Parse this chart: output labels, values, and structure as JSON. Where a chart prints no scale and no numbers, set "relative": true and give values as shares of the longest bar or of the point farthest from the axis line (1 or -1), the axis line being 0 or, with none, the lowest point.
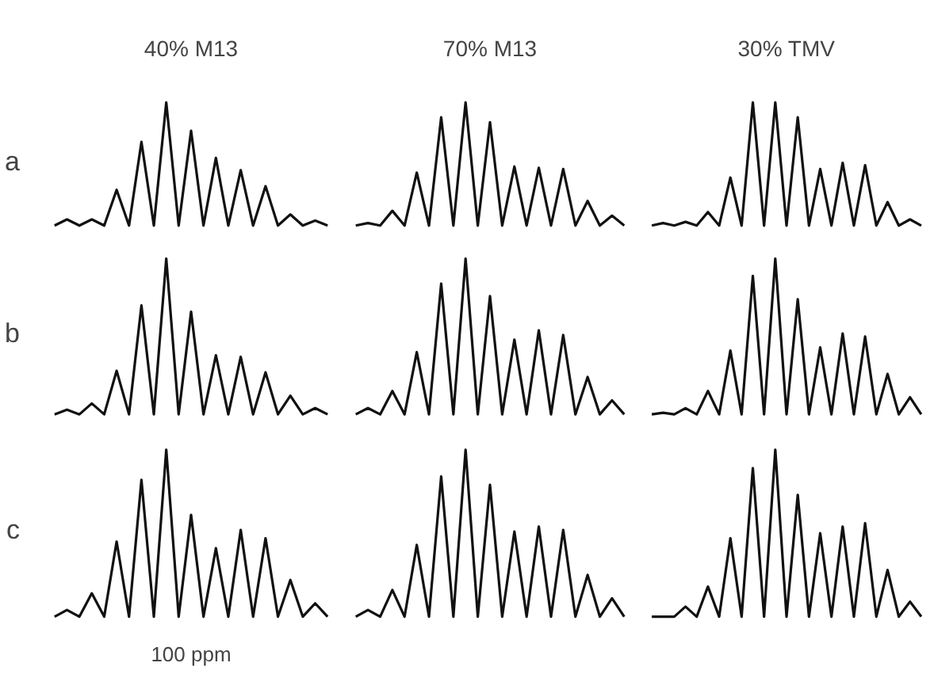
{
  "chart_data": [
    {
      "type": "line",
      "relative": true,
      "title": "40% M13",
      "ylabel": "a",
      "color": "#111111",
      "categories": [
        null,
        null,
        null,
        null,
        null,
        null,
        null,
        null,
        null,
        null,
        null,
        null,
        null,
        null,
        null,
        null,
        null,
        null,
        null,
        null,
        null,
        null,
        null
      ],
      "values": [
        0,
        0.05,
        0,
        0.05,
        0,
        0.29,
        0,
        0.68,
        0,
        1,
        0,
        0.77,
        0,
        0.55,
        0,
        0.45,
        0,
        0.32,
        0,
        0.09,
        0,
        0.04,
        0
      ]
    },
    {
      "type": "line",
      "relative": true,
      "title": "70% M13",
      "color": "#111111",
      "categories": [
        null,
        null,
        null,
        null,
        null,
        null,
        null,
        null,
        null,
        null,
        null,
        null,
        null,
        null,
        null,
        null,
        null,
        null,
        null,
        null,
        null,
        null,
        null
      ],
      "values": [
        0,
        0.02,
        0,
        0.12,
        0,
        0.43,
        0,
        0.88,
        0,
        1,
        0,
        0.84,
        0,
        0.48,
        0,
        0.47,
        0,
        0.46,
        0,
        0.2,
        0,
        0.08,
        0
      ]
    },
    {
      "type": "line",
      "relative": true,
      "title": "30% TMV",
      "color": "#111111",
      "categories": [
        null,
        null,
        null,
        null,
        null,
        null,
        null,
        null,
        null,
        null,
        null,
        null,
        null,
        null,
        null,
        null,
        null,
        null,
        null,
        null,
        null,
        null,
        null,
        null,
        null
      ],
      "values": [
        0,
        0.02,
        0,
        0.03,
        0,
        0.11,
        0,
        0.39,
        0,
        1,
        0,
        1,
        0,
        0.88,
        0,
        0.46,
        0,
        0.51,
        0,
        0.49,
        0,
        0.19,
        0,
        0.05,
        0
      ]
    },
    {
      "type": "line",
      "relative": true,
      "ylabel": "b",
      "color": "#111111",
      "categories": [
        null,
        null,
        null,
        null,
        null,
        null,
        null,
        null,
        null,
        null,
        null,
        null,
        null,
        null,
        null,
        null,
        null,
        null,
        null,
        null,
        null,
        null,
        null
      ],
      "values": [
        0,
        0.03,
        0,
        0.07,
        0,
        0.28,
        0,
        0.7,
        0,
        1,
        0,
        0.66,
        0,
        0.38,
        0,
        0.37,
        0,
        0.27,
        0,
        0.12,
        0,
        0.04,
        0
      ]
    },
    {
      "type": "line",
      "relative": true,
      "color": "#111111",
      "categories": [
        null,
        null,
        null,
        null,
        null,
        null,
        null,
        null,
        null,
        null,
        null,
        null,
        null,
        null,
        null,
        null,
        null,
        null,
        null,
        null,
        null,
        null,
        null
      ],
      "values": [
        0,
        0.04,
        0,
        0.15,
        0,
        0.4,
        0,
        0.84,
        0,
        1,
        0,
        0.76,
        0,
        0.48,
        0,
        0.54,
        0,
        0.51,
        0,
        0.24,
        0,
        0.09,
        0
      ]
    },
    {
      "type": "line",
      "relative": true,
      "color": "#111111",
      "categories": [
        null,
        null,
        null,
        null,
        null,
        null,
        null,
        null,
        null,
        null,
        null,
        null,
        null,
        null,
        null,
        null,
        null,
        null,
        null,
        null,
        null,
        null,
        null,
        null,
        null
      ],
      "values": [
        0,
        0.01,
        0,
        0.04,
        0,
        0.15,
        0,
        0.41,
        0,
        0.89,
        0,
        1,
        0,
        0.74,
        0,
        0.43,
        0,
        0.52,
        0,
        0.5,
        0,
        0.26,
        0,
        0.11,
        0
      ]
    },
    {
      "type": "line",
      "relative": true,
      "ylabel": "c",
      "color": "#111111",
      "annotations": [
        "100 ppm"
      ],
      "categories": [
        null,
        null,
        null,
        null,
        null,
        null,
        null,
        null,
        null,
        null,
        null,
        null,
        null,
        null,
        null,
        null,
        null,
        null,
        null,
        null,
        null,
        null,
        null
      ],
      "values": [
        0,
        0.04,
        0,
        0.14,
        0,
        0.45,
        0,
        0.82,
        0,
        1,
        0,
        0.61,
        0,
        0.41,
        0,
        0.52,
        0,
        0.47,
        0,
        0.22,
        0,
        0.08,
        0
      ]
    },
    {
      "type": "line",
      "relative": true,
      "color": "#111111",
      "categories": [
        null,
        null,
        null,
        null,
        null,
        null,
        null,
        null,
        null,
        null,
        null,
        null,
        null,
        null,
        null,
        null,
        null,
        null,
        null,
        null,
        null,
        null,
        null
      ],
      "values": [
        0,
        0.04,
        0,
        0.16,
        0,
        0.43,
        0,
        0.84,
        0,
        1,
        0,
        0.79,
        0,
        0.51,
        0,
        0.54,
        0,
        0.52,
        0,
        0.25,
        0,
        0.11,
        0
      ]
    },
    {
      "type": "line",
      "relative": true,
      "color": "#111111",
      "categories": [
        null,
        null,
        null,
        null,
        null,
        null,
        null,
        null,
        null,
        null,
        null,
        null,
        null,
        null,
        null,
        null,
        null,
        null,
        null,
        null,
        null,
        null,
        null,
        null,
        null
      ],
      "values": [
        0,
        0,
        0,
        0.06,
        0,
        0.18,
        0,
        0.47,
        0,
        0.89,
        0,
        1,
        0,
        0.73,
        0,
        0.5,
        0,
        0.54,
        0,
        0.56,
        0,
        0.28,
        0,
        0.09,
        0
      ]
    }
  ]
}
